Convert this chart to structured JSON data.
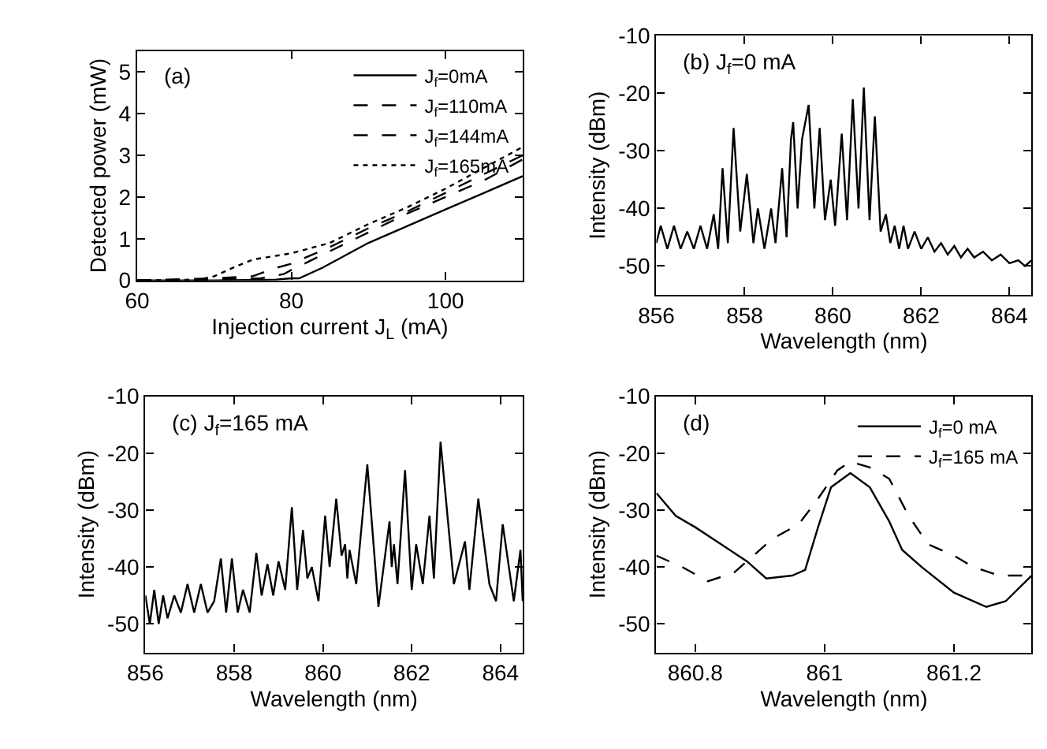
{
  "chart_data": [
    {
      "type": "line",
      "xlabel": "Injection current J$_{L}$ (mA)",
      "ylabel": "Detected power (mW)",
      "xlim": [
        60,
        110
      ],
      "ylim": [
        0,
        5.5
      ],
      "xticks": [
        60,
        80,
        100
      ],
      "yticks": [
        0,
        1,
        2,
        3,
        4,
        5
      ],
      "grid": false,
      "legend": "top right",
      "annotations": [
        "(a)"
      ],
      "series": [
        {
          "name": "J$_{f}$=0mA",
          "color": "#000000",
          "line_style": "solid",
          "x": [
            60,
            70,
            78,
            80,
            81,
            84,
            90,
            95,
            100,
            105,
            110
          ],
          "values": [
            0,
            0,
            0.02,
            0.05,
            0.05,
            0.3,
            0.9,
            1.3,
            1.7,
            2.1,
            2.5
          ]
        },
        {
          "name": "J$_{f}$=110mA",
          "color": "#000000",
          "line_style": "dashed",
          "x": [
            60,
            70,
            76,
            79,
            80,
            85,
            90,
            95,
            100,
            105,
            110
          ],
          "values": [
            0,
            0.02,
            0.05,
            0.15,
            0.25,
            0.7,
            1.15,
            1.6,
            2.0,
            2.4,
            2.9
          ]
        },
        {
          "name": "J$_{f}$=144mA",
          "color": "#000000",
          "line_style": "dashed",
          "x": [
            60,
            70,
            75,
            78,
            80,
            85,
            90,
            95,
            100,
            105,
            110
          ],
          "values": [
            0,
            0.05,
            0.1,
            0.3,
            0.4,
            0.8,
            1.25,
            1.65,
            2.1,
            2.55,
            3.0
          ]
        },
        {
          "name": "J$_{f}$=165mA",
          "color": "#000000",
          "line_style": "dotted",
          "x": [
            60,
            68,
            70,
            73,
            75,
            80,
            85,
            90,
            95,
            100,
            105,
            110
          ],
          "values": [
            0,
            0.02,
            0.1,
            0.35,
            0.5,
            0.65,
            0.9,
            1.35,
            1.75,
            2.2,
            2.7,
            3.2
          ]
        }
      ]
    },
    {
      "type": "line",
      "xlabel": "Wavelength (nm)",
      "ylabel": "Intensity (dBm)",
      "xlim": [
        856,
        864.5
      ],
      "ylim": [
        -55,
        -10
      ],
      "xticks": [
        856,
        858,
        860,
        862,
        864
      ],
      "yticks": [
        -50,
        -40,
        -30,
        -20,
        -10
      ],
      "grid": false,
      "legend": false,
      "annotations": [
        "(b) J$_{f}$=0 mA"
      ],
      "series": [
        {
          "color": "#000000",
          "line_style": "solid",
          "x": [
            856.0,
            856.1,
            856.25,
            856.4,
            856.55,
            856.7,
            856.85,
            857.0,
            857.15,
            857.3,
            857.4,
            857.5,
            857.62,
            857.75,
            857.9,
            858.05,
            858.2,
            858.3,
            858.45,
            858.6,
            858.7,
            858.85,
            858.95,
            859.05,
            859.1,
            859.2,
            859.3,
            859.45,
            859.58,
            859.7,
            859.82,
            859.95,
            860.05,
            860.2,
            860.32,
            860.45,
            860.58,
            860.7,
            860.83,
            860.95,
            861.08,
            861.2,
            861.3,
            861.4,
            861.5,
            861.6,
            861.7,
            861.85,
            862.0,
            862.15,
            862.3,
            862.45,
            862.6,
            862.75,
            862.9,
            863.05,
            863.2,
            863.4,
            863.6,
            863.8,
            864.0,
            864.2,
            864.35,
            864.5
          ],
          "values": [
            -46,
            -43,
            -47,
            -43,
            -47,
            -44,
            -47,
            -43,
            -47,
            -41,
            -47,
            -33,
            -46,
            -26,
            -44,
            -34,
            -46,
            -40,
            -47,
            -40,
            -46,
            -33,
            -45,
            -28,
            -25,
            -40,
            -28,
            -22,
            -40,
            -26,
            -42,
            -35,
            -43,
            -27,
            -42,
            -21,
            -40,
            -19,
            -42,
            -24,
            -44,
            -41,
            -46,
            -43,
            -47,
            -43,
            -47,
            -44,
            -47,
            -45,
            -47.5,
            -46,
            -48,
            -46.5,
            -48.5,
            -47,
            -48.5,
            -47.5,
            -49,
            -48,
            -49.5,
            -49,
            -50,
            -49
          ]
        }
      ]
    },
    {
      "type": "line",
      "xlabel": "Wavelength (nm)",
      "ylabel": "Intensity (dBm)",
      "xlim": [
        856,
        864.5
      ],
      "ylim": [
        -55,
        -10
      ],
      "xticks": [
        856,
        858,
        860,
        862,
        864
      ],
      "yticks": [
        -50,
        -40,
        -30,
        -20,
        -10
      ],
      "grid": false,
      "legend": false,
      "annotations": [
        "(c) J$_{f}$=165 mA"
      ],
      "series": [
        {
          "color": "#000000",
          "line_style": "solid",
          "x": [
            856.0,
            856.1,
            856.2,
            856.3,
            856.4,
            856.5,
            856.65,
            856.8,
            856.95,
            857.1,
            857.25,
            857.4,
            857.55,
            857.7,
            857.82,
            857.95,
            858.08,
            858.2,
            858.35,
            858.5,
            858.62,
            858.75,
            858.88,
            859.0,
            859.15,
            859.3,
            859.42,
            859.55,
            859.65,
            859.75,
            859.9,
            860.05,
            860.15,
            860.3,
            860.42,
            860.5,
            860.55,
            860.6,
            860.75,
            861.0,
            861.25,
            861.5,
            861.55,
            861.6,
            861.68,
            861.85,
            862.0,
            862.1,
            862.25,
            862.4,
            862.5,
            862.65,
            862.95,
            863.2,
            863.3,
            863.5,
            863.75,
            863.9,
            864.05,
            864.3,
            864.45,
            864.5
          ],
          "values": [
            -45,
            -50,
            -44,
            -50,
            -45,
            -49,
            -45,
            -48,
            -43,
            -48,
            -43,
            -48,
            -46,
            -38.5,
            -48,
            -38.5,
            -48,
            -44,
            -48,
            -37.5,
            -45,
            -39.5,
            -45,
            -39,
            -44,
            -29.5,
            -44,
            -33.5,
            -42,
            -40,
            -46,
            -31,
            -40,
            -28,
            -38,
            -36,
            -42,
            -37,
            -43,
            -22,
            -47,
            -32,
            -40,
            -36,
            -43,
            -23,
            -44,
            -36,
            -43,
            -31,
            -42,
            -18,
            -43,
            -35.5,
            -44,
            -28,
            -43,
            -46,
            -32.5,
            -46,
            -37,
            -46
          ]
        }
      ]
    },
    {
      "type": "line",
      "xlabel": "Wavelength (nm)",
      "ylabel": "Intensity (dBm)",
      "xlim": [
        860.74,
        861.32
      ],
      "ylim": [
        -55,
        -10
      ],
      "xticks": [
        860.8,
        861,
        861.2
      ],
      "yticks": [
        -50,
        -40,
        -30,
        -20,
        -10
      ],
      "grid": false,
      "legend": "top right",
      "annotations": [
        "(d)"
      ],
      "series": [
        {
          "name": "J$_{f}$=0 mA",
          "color": "#000000",
          "line_style": "solid",
          "x": [
            860.74,
            860.77,
            860.8,
            860.84,
            860.88,
            860.91,
            860.95,
            860.97,
            860.99,
            861.01,
            861.04,
            861.07,
            861.1,
            861.12,
            861.15,
            861.2,
            861.25,
            861.28,
            861.32
          ],
          "values": [
            -27,
            -31,
            -33,
            -36,
            -39,
            -42,
            -41.5,
            -40.5,
            -33,
            -26,
            -23.5,
            -26,
            -32,
            -37,
            -40,
            -44.5,
            -47,
            -46,
            -41.5
          ]
        },
        {
          "name": "J$_{f}$=165 mA",
          "color": "#000000",
          "line_style": "dashed",
          "x": [
            860.74,
            860.78,
            860.82,
            860.86,
            860.89,
            860.92,
            860.96,
            860.99,
            861.02,
            861.04,
            861.07,
            861.1,
            861.13,
            861.16,
            861.2,
            861.23,
            861.27,
            861.32
          ],
          "values": [
            -38,
            -40,
            -42.5,
            -41,
            -38,
            -35,
            -32.5,
            -28,
            -23,
            -21.5,
            -22.5,
            -24.5,
            -31,
            -36,
            -38,
            -40,
            -41.5,
            -41.5
          ]
        }
      ]
    }
  ]
}
